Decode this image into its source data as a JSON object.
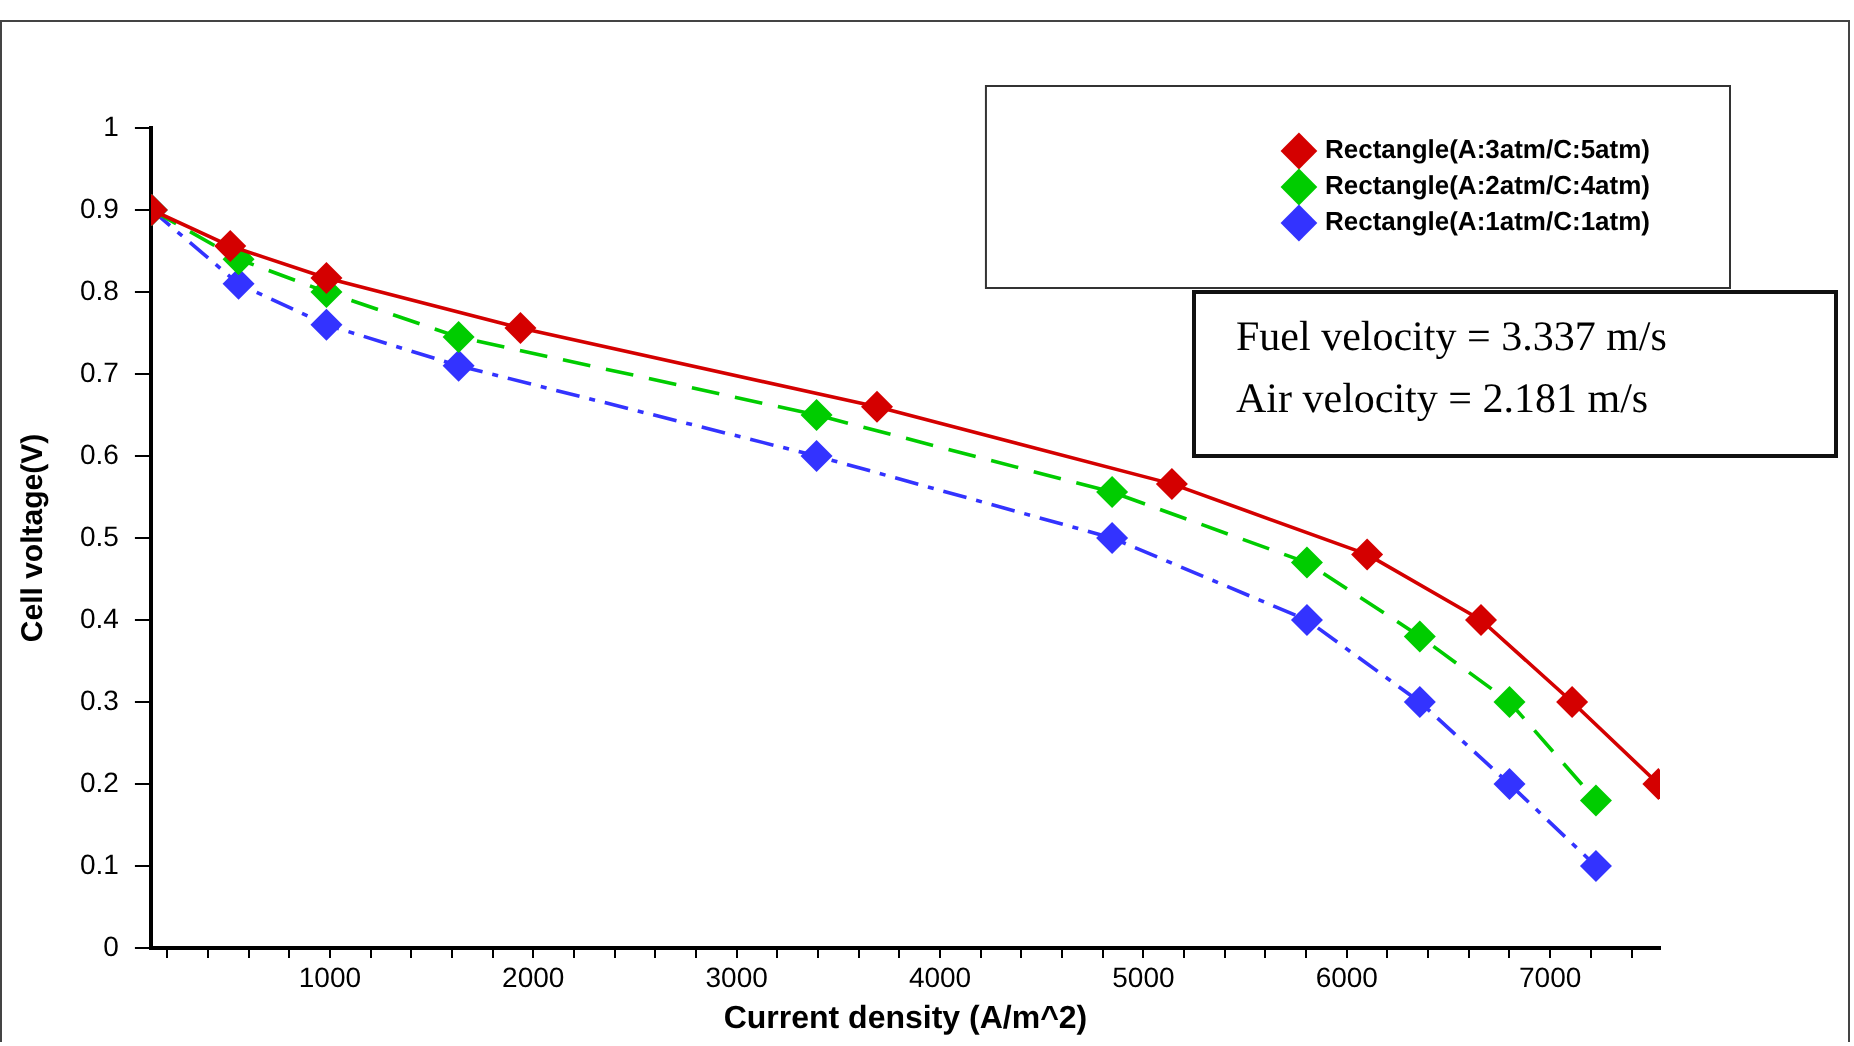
{
  "chart_data": {
    "type": "line",
    "xlabel": "Current density (A/m^2)",
    "ylabel": "Cell voltage(V)",
    "xlim": [
      120,
      7540
    ],
    "ylim": [
      0,
      1
    ],
    "xticks": [
      {
        "value": 200,
        "label": null
      },
      {
        "value": 400,
        "label": null
      },
      {
        "value": 600,
        "label": null
      },
      {
        "value": 800,
        "label": null
      },
      1000,
      {
        "value": 1200,
        "label": null
      },
      {
        "value": 1400,
        "label": null
      },
      {
        "value": 1600,
        "label": null
      },
      {
        "value": 1800,
        "label": null
      },
      2000,
      {
        "value": 2200,
        "label": null
      },
      {
        "value": 2400,
        "label": null
      },
      {
        "value": 2600,
        "label": null
      },
      {
        "value": 2800,
        "label": null
      },
      3000,
      {
        "value": 3200,
        "label": null
      },
      {
        "value": 3400,
        "label": null
      },
      {
        "value": 3600,
        "label": null
      },
      {
        "value": 3800,
        "label": null
      },
      4000,
      {
        "value": 4200,
        "label": null
      },
      {
        "value": 4400,
        "label": null
      },
      {
        "value": 4600,
        "label": null
      },
      {
        "value": 4800,
        "label": null
      },
      5000,
      {
        "value": 5200,
        "label": null
      },
      {
        "value": 5400,
        "label": null
      },
      {
        "value": 5600,
        "label": null
      },
      {
        "value": 5800,
        "label": null
      },
      6000,
      {
        "value": 6200,
        "label": null
      },
      {
        "value": 6400,
        "label": null
      },
      {
        "value": 6600,
        "label": null
      },
      {
        "value": 6800,
        "label": null
      },
      7000,
      {
        "value": 7200,
        "label": null
      },
      {
        "value": 7400,
        "label": null
      }
    ],
    "yticks": [
      0,
      0.1,
      0.2,
      0.3,
      0.4,
      0.5,
      0.6,
      0.7,
      0.8,
      0.9,
      1
    ],
    "grid": false,
    "legend": "top right",
    "marker": "diamond",
    "annotations": [
      "Fuel velocity = 3.337 m/s",
      "Air velocity = 2.181 m/s"
    ],
    "series": [
      {
        "name": "Rectangle(A:3atm/C:5atm)",
        "color": "#d40000",
        "line_style": "solid",
        "x": [
          124,
          510,
          983,
          1937,
          3690,
          5140,
          6100,
          6660,
          7108,
          7532
        ],
        "values": [
          0.9,
          0.856,
          0.817,
          0.756,
          0.66,
          0.566,
          0.48,
          0.4,
          0.3,
          0.2
        ]
      },
      {
        "name": "Rectangle(A:2atm/C:4atm)",
        "color": "#00cc00",
        "line_style": "dashed",
        "x": [
          124,
          551,
          983,
          1633,
          3393,
          4846,
          5804,
          6359,
          6800,
          7225
        ],
        "values": [
          0.9,
          0.84,
          0.8,
          0.745,
          0.65,
          0.556,
          0.47,
          0.38,
          0.3,
          0.18
        ]
      },
      {
        "name": "Rectangle(A:1atm/C:1atm)",
        "color": "#3333ff",
        "line_style": "dashdot",
        "x": [
          124,
          551,
          983,
          1633,
          3393,
          4846,
          5804,
          6359,
          6800,
          7225
        ],
        "values": [
          0.9,
          0.81,
          0.76,
          0.71,
          0.6,
          0.5,
          0.4,
          0.3,
          0.2,
          0.1
        ]
      }
    ]
  }
}
